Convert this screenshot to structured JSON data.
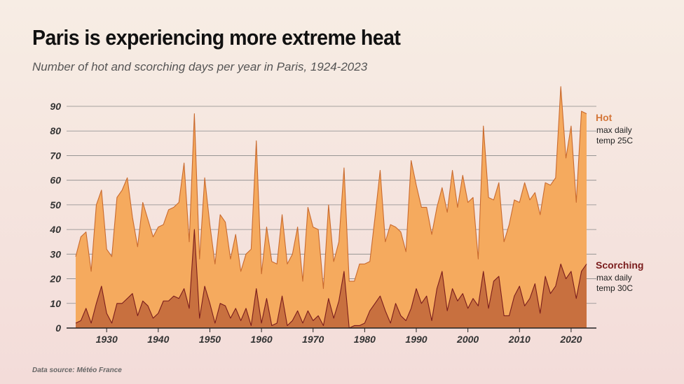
{
  "header": {
    "title": "Paris is experiencing more extreme heat",
    "subtitle": "Number of hot and scorching days per year in Paris, 1924-2023"
  },
  "footer": {
    "source": "Data source: Météo France"
  },
  "colors": {
    "hot_fill": "#f5aa5e",
    "hot_line": "#c96a2e",
    "hot_label": "#d4773a",
    "scorching_fill": "#c8703f",
    "scorching_line": "#7a1c1c",
    "scorching_label": "#7a1c1c",
    "grid": "#8a8a8a",
    "axis": "#222222"
  },
  "chart_data": {
    "type": "area",
    "title": "Paris is experiencing more extreme heat",
    "subtitle": "Number of hot and scorching days per year in Paris, 1924-2023",
    "xlabel": "",
    "ylabel": "",
    "xlim": [
      1923,
      2024
    ],
    "ylim": [
      0,
      90
    ],
    "grid": true,
    "y_ticks": [
      0,
      10,
      20,
      30,
      40,
      50,
      60,
      70,
      80,
      90
    ],
    "x_ticks": [
      1930,
      1940,
      1950,
      1960,
      1970,
      1980,
      1990,
      2000,
      2010,
      2020
    ],
    "x": [
      1924,
      1925,
      1926,
      1927,
      1928,
      1929,
      1930,
      1931,
      1932,
      1933,
      1934,
      1935,
      1936,
      1937,
      1938,
      1939,
      1940,
      1941,
      1942,
      1943,
      1944,
      1945,
      1946,
      1947,
      1948,
      1949,
      1950,
      1951,
      1952,
      1953,
      1954,
      1955,
      1956,
      1957,
      1958,
      1959,
      1960,
      1961,
      1962,
      1963,
      1964,
      1965,
      1966,
      1967,
      1968,
      1969,
      1970,
      1971,
      1972,
      1973,
      1974,
      1975,
      1976,
      1977,
      1978,
      1979,
      1980,
      1981,
      1982,
      1983,
      1984,
      1985,
      1986,
      1987,
      1988,
      1989,
      1990,
      1991,
      1992,
      1993,
      1994,
      1995,
      1996,
      1997,
      1998,
      1999,
      2000,
      2001,
      2002,
      2003,
      2004,
      2005,
      2006,
      2007,
      2008,
      2009,
      2010,
      2011,
      2012,
      2013,
      2014,
      2015,
      2016,
      2017,
      2018,
      2019,
      2020,
      2021,
      2022,
      2023
    ],
    "series": [
      {
        "name": "Hot",
        "description_line1": "max daily",
        "description_line2": "temp 25C",
        "values": [
          29,
          37,
          39,
          23,
          50,
          56,
          32,
          29,
          53,
          56,
          61,
          45,
          33,
          51,
          44,
          37,
          41,
          42,
          48,
          49,
          51,
          67,
          35,
          87,
          28,
          61,
          42,
          26,
          46,
          43,
          28,
          38,
          23,
          30,
          32,
          76,
          22,
          41,
          27,
          26,
          46,
          26,
          30,
          41,
          19,
          49,
          41,
          40,
          16,
          50,
          27,
          35,
          65,
          19,
          19,
          26,
          26,
          27,
          45,
          64,
          35,
          42,
          41,
          39,
          31,
          68,
          58,
          49,
          49,
          38,
          49,
          57,
          47,
          64,
          49,
          62,
          51,
          53,
          28,
          82,
          53,
          52,
          59,
          35,
          42,
          52,
          51,
          59,
          52,
          55,
          46,
          59,
          58,
          61,
          98,
          69,
          82,
          51,
          88,
          87
        ]
      },
      {
        "name": "Scorching",
        "description_line1": "max daily",
        "description_line2": "temp 30C",
        "values": [
          2,
          3,
          8,
          2,
          10,
          17,
          6,
          2,
          10,
          10,
          12,
          14,
          5,
          11,
          9,
          4,
          6,
          11,
          11,
          13,
          12,
          16,
          8,
          40,
          4,
          17,
          10,
          2,
          10,
          9,
          4,
          8,
          3,
          8,
          1,
          16,
          2,
          12,
          1,
          2,
          13,
          1,
          3,
          7,
          2,
          7,
          3,
          5,
          1,
          12,
          4,
          11,
          23,
          0,
          1,
          1,
          2,
          7,
          10,
          13,
          7,
          2,
          10,
          5,
          3,
          8,
          16,
          10,
          13,
          3,
          16,
          23,
          7,
          16,
          11,
          14,
          8,
          12,
          9,
          23,
          8,
          19,
          21,
          5,
          5,
          13,
          17,
          9,
          12,
          18,
          6,
          21,
          14,
          17,
          26,
          20,
          23,
          12,
          23,
          26
        ]
      }
    ],
    "legend_position": "right"
  }
}
